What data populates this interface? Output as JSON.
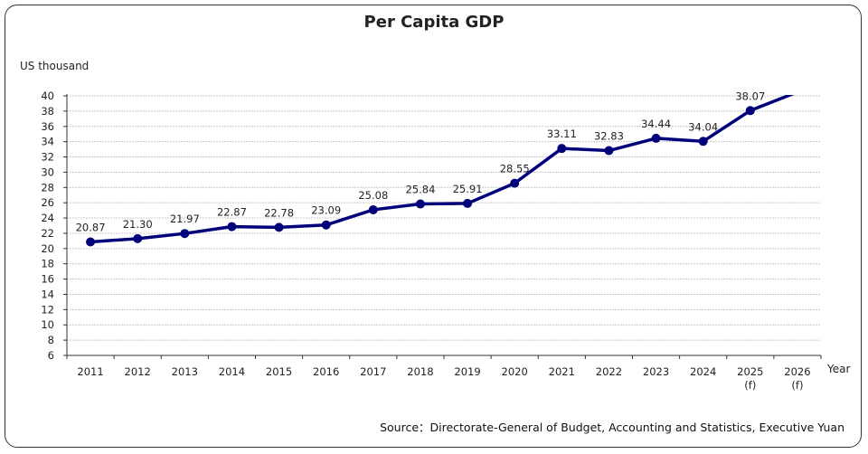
{
  "chart_data": {
    "type": "line",
    "title": "Per Capita GDP",
    "ylabel": "US thousand",
    "xlabel": "Year",
    "ylim": [
      6,
      40
    ],
    "ytick_step": 2,
    "grid": true,
    "categories": [
      "2011",
      "2012",
      "2013",
      "2014",
      "2015",
      "2016",
      "2017",
      "2018",
      "2019",
      "2020",
      "2021",
      "2022",
      "2023",
      "2024",
      "2025\n(f)",
      "2026\n(f)"
    ],
    "series": [
      {
        "values": [
          20.87,
          21.3,
          21.97,
          22.87,
          22.78,
          23.09,
          25.08,
          25.84,
          25.91,
          28.55,
          33.11,
          32.83,
          34.44,
          34.04,
          38.07,
          40.5
        ],
        "labels": [
          "20.87",
          "21.30",
          "21.97",
          "22.87",
          "22.78",
          "23.09",
          "25.08",
          "25.84",
          "25.91",
          "28.55",
          "33.11",
          "32.83",
          "34.44",
          "34.04",
          "38.07",
          ""
        ],
        "color": "#00007a"
      }
    ]
  },
  "source": "Source：Directorate-General of Budget, Accounting and Statistics, Executive Yuan"
}
